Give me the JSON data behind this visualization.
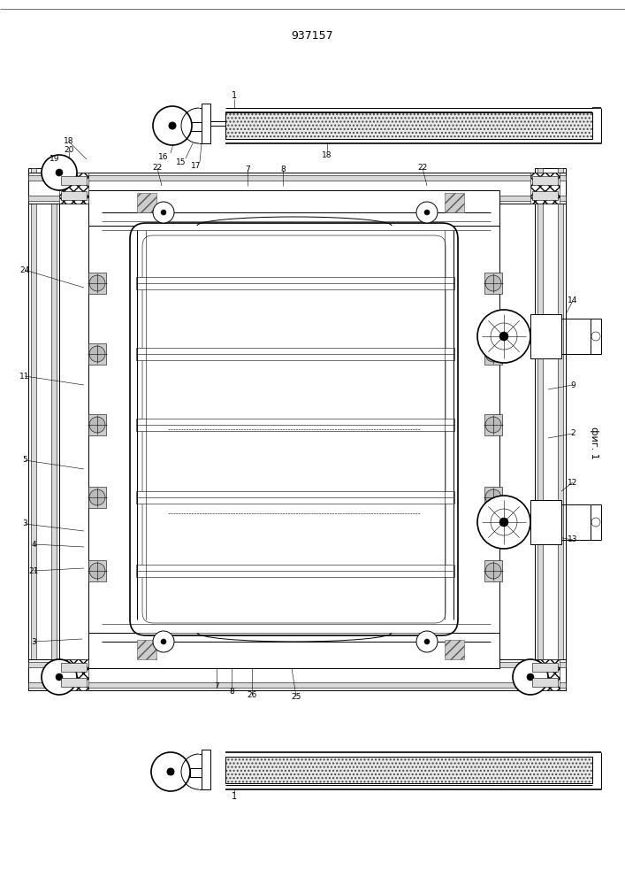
{
  "title": "937157",
  "fig_label": "фиг. 1",
  "bg_color": "#ffffff"
}
